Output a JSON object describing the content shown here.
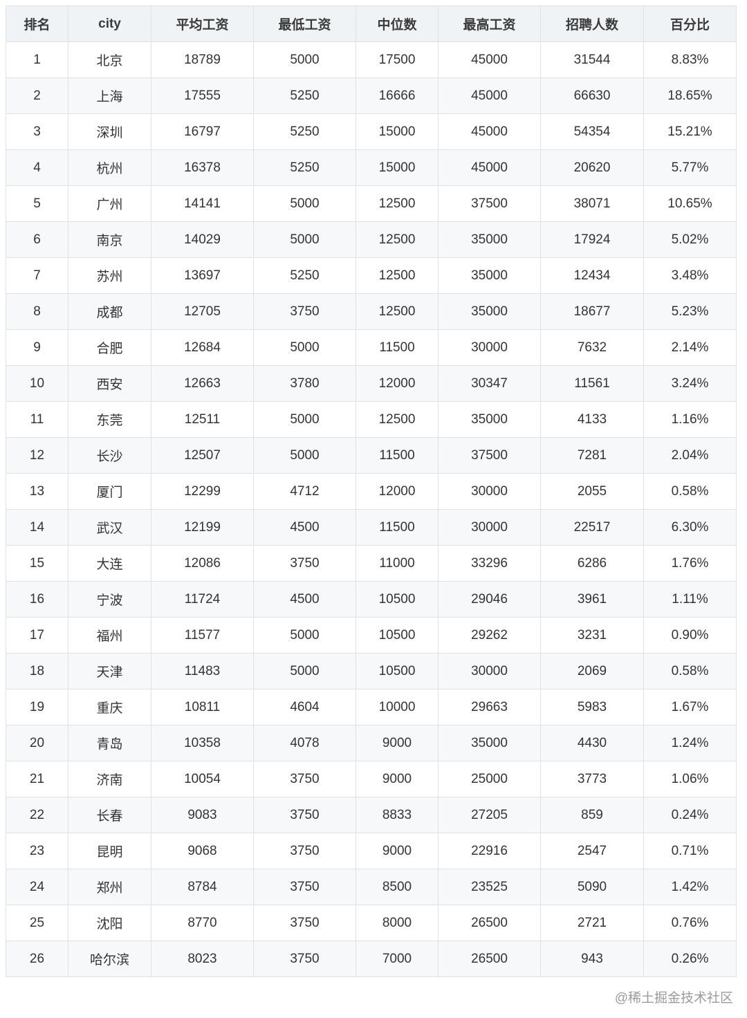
{
  "table": {
    "headers": [
      "排名",
      "city",
      "平均工资",
      "最低工资",
      "中位数",
      "最高工资",
      "招聘人数",
      "百分比"
    ],
    "rows": [
      [
        "1",
        "北京",
        "18789",
        "5000",
        "17500",
        "45000",
        "31544",
        "8.83%"
      ],
      [
        "2",
        "上海",
        "17555",
        "5250",
        "16666",
        "45000",
        "66630",
        "18.65%"
      ],
      [
        "3",
        "深圳",
        "16797",
        "5250",
        "15000",
        "45000",
        "54354",
        "15.21%"
      ],
      [
        "4",
        "杭州",
        "16378",
        "5250",
        "15000",
        "45000",
        "20620",
        "5.77%"
      ],
      [
        "5",
        "广州",
        "14141",
        "5000",
        "12500",
        "37500",
        "38071",
        "10.65%"
      ],
      [
        "6",
        "南京",
        "14029",
        "5000",
        "12500",
        "35000",
        "17924",
        "5.02%"
      ],
      [
        "7",
        "苏州",
        "13697",
        "5250",
        "12500",
        "35000",
        "12434",
        "3.48%"
      ],
      [
        "8",
        "成都",
        "12705",
        "3750",
        "12500",
        "35000",
        "18677",
        "5.23%"
      ],
      [
        "9",
        "合肥",
        "12684",
        "5000",
        "11500",
        "30000",
        "7632",
        "2.14%"
      ],
      [
        "10",
        "西安",
        "12663",
        "3780",
        "12000",
        "30347",
        "11561",
        "3.24%"
      ],
      [
        "11",
        "东莞",
        "12511",
        "5000",
        "12500",
        "35000",
        "4133",
        "1.16%"
      ],
      [
        "12",
        "长沙",
        "12507",
        "5000",
        "11500",
        "37500",
        "7281",
        "2.04%"
      ],
      [
        "13",
        "厦门",
        "12299",
        "4712",
        "12000",
        "30000",
        "2055",
        "0.58%"
      ],
      [
        "14",
        "武汉",
        "12199",
        "4500",
        "11500",
        "30000",
        "22517",
        "6.30%"
      ],
      [
        "15",
        "大连",
        "12086",
        "3750",
        "11000",
        "33296",
        "6286",
        "1.76%"
      ],
      [
        "16",
        "宁波",
        "11724",
        "4500",
        "10500",
        "29046",
        "3961",
        "1.11%"
      ],
      [
        "17",
        "福州",
        "11577",
        "5000",
        "10500",
        "29262",
        "3231",
        "0.90%"
      ],
      [
        "18",
        "天津",
        "11483",
        "5000",
        "10500",
        "30000",
        "2069",
        "0.58%"
      ],
      [
        "19",
        "重庆",
        "10811",
        "4604",
        "10000",
        "29663",
        "5983",
        "1.67%"
      ],
      [
        "20",
        "青岛",
        "10358",
        "4078",
        "9000",
        "35000",
        "4430",
        "1.24%"
      ],
      [
        "21",
        "济南",
        "10054",
        "3750",
        "9000",
        "25000",
        "3773",
        "1.06%"
      ],
      [
        "22",
        "长春",
        "9083",
        "3750",
        "8833",
        "27205",
        "859",
        "0.24%"
      ],
      [
        "23",
        "昆明",
        "9068",
        "3750",
        "9000",
        "22916",
        "2547",
        "0.71%"
      ],
      [
        "24",
        "郑州",
        "8784",
        "3750",
        "8500",
        "23525",
        "5090",
        "1.42%"
      ],
      [
        "25",
        "沈阳",
        "8770",
        "3750",
        "8000",
        "26500",
        "2721",
        "0.76%"
      ],
      [
        "26",
        "哈尔滨",
        "8023",
        "3750",
        "7000",
        "26500",
        "943",
        "0.26%"
      ]
    ]
  },
  "watermark": "@稀土掘金技术社区",
  "colors": {
    "header_bg": "#f0f3f5",
    "stripe_bg": "#f6f8fa",
    "border": "#dfe2e5"
  }
}
